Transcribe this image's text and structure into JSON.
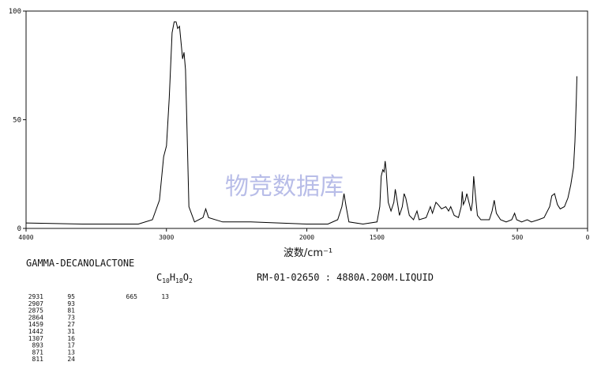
{
  "chart_data": {
    "type": "line",
    "x_axis_label": "波数/cm⁻¹",
    "watermark": "物竞数据库",
    "xlim": [
      4000,
      0
    ],
    "xbreak": 2000,
    "xticks": [
      4000,
      3000,
      2000,
      1500,
      500,
      0
    ],
    "ylim": [
      0,
      100
    ],
    "yticks": [
      0,
      50,
      100
    ],
    "color": "#000000",
    "x": [
      4000,
      3600,
      3200,
      3100,
      3050,
      3020,
      3000,
      2980,
      2960,
      2945,
      2931,
      2920,
      2907,
      2895,
      2885,
      2875,
      2864,
      2855,
      2840,
      2800,
      2740,
      2720,
      2700,
      2600,
      2400,
      2200,
      2000,
      1850,
      1780,
      1750,
      1735,
      1720,
      1700,
      1600,
      1500,
      1480,
      1470,
      1459,
      1450,
      1442,
      1435,
      1420,
      1400,
      1380,
      1370,
      1360,
      1340,
      1320,
      1307,
      1295,
      1270,
      1240,
      1215,
      1200,
      1150,
      1120,
      1105,
      1080,
      1065,
      1040,
      1010,
      990,
      975,
      950,
      920,
      900,
      893,
      885,
      871,
      860,
      845,
      830,
      820,
      811,
      800,
      785,
      760,
      700,
      680,
      665,
      650,
      620,
      580,
      540,
      520,
      505,
      470,
      430,
      400,
      350,
      310,
      270,
      255,
      235,
      215,
      195,
      165,
      140,
      120,
      100,
      90,
      80,
      76
    ],
    "values": [
      2.5,
      2,
      2,
      4,
      13,
      33,
      38,
      60,
      90,
      95,
      95,
      92,
      93,
      85,
      78,
      81,
      73,
      50,
      10,
      3,
      5,
      9,
      5,
      3,
      3,
      2.5,
      2,
      2,
      4,
      10,
      16,
      10,
      3,
      2,
      3,
      10,
      24,
      27,
      26,
      31,
      27,
      12,
      8,
      12,
      18,
      14,
      6,
      10,
      16,
      14,
      6,
      4,
      8,
      4,
      5,
      10,
      7,
      12,
      11,
      9,
      10,
      8,
      10,
      6,
      5,
      10,
      17,
      11,
      13,
      16,
      12,
      8,
      12,
      24,
      16,
      6,
      4,
      4,
      8,
      13,
      7,
      4,
      3,
      4,
      7,
      4,
      3,
      4,
      3,
      4,
      5,
      10,
      15,
      16,
      11,
      9,
      10,
      14,
      20,
      28,
      40,
      60,
      70
    ],
    "compound": "GAMMA-DECANOLACTONE",
    "formula": [
      "C",
      "10",
      "H",
      "18",
      "O",
      "2"
    ],
    "sample_info": "RM-01-02650 : 4880A.200M.LIQUID",
    "peaks": [
      [
        "2931",
        "95"
      ],
      [
        "2907",
        "93"
      ],
      [
        "2875",
        "81"
      ],
      [
        "2864",
        "73"
      ],
      [
        "1459",
        "27"
      ],
      [
        "1442",
        "31"
      ],
      [
        "1307",
        "16"
      ],
      [
        "893",
        "17"
      ],
      [
        "871",
        "13"
      ],
      [
        "811",
        "24"
      ],
      [
        "665",
        "13"
      ]
    ]
  }
}
